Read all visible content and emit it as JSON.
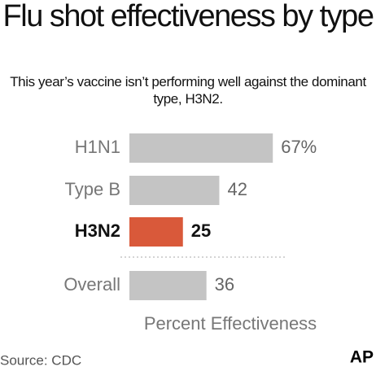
{
  "chart_data": {
    "type": "bar",
    "orientation": "horizontal",
    "title": "Flu shot effectiveness by type",
    "subtitle": "This year’s vaccine isn’t performing well against the dominant type, H3N2.",
    "categories": [
      "H1N1",
      "Type B",
      "H3N2",
      "Overall"
    ],
    "values": [
      67,
      42,
      25,
      36
    ],
    "value_labels": [
      "67%",
      "42",
      "25",
      "36"
    ],
    "colors": [
      "#c4c4c4",
      "#c4c4c4",
      "#d9593a",
      "#c4c4c4"
    ],
    "xlabel": "Percent Effectiveness",
    "source": "Source: CDC",
    "logo": "AP"
  }
}
